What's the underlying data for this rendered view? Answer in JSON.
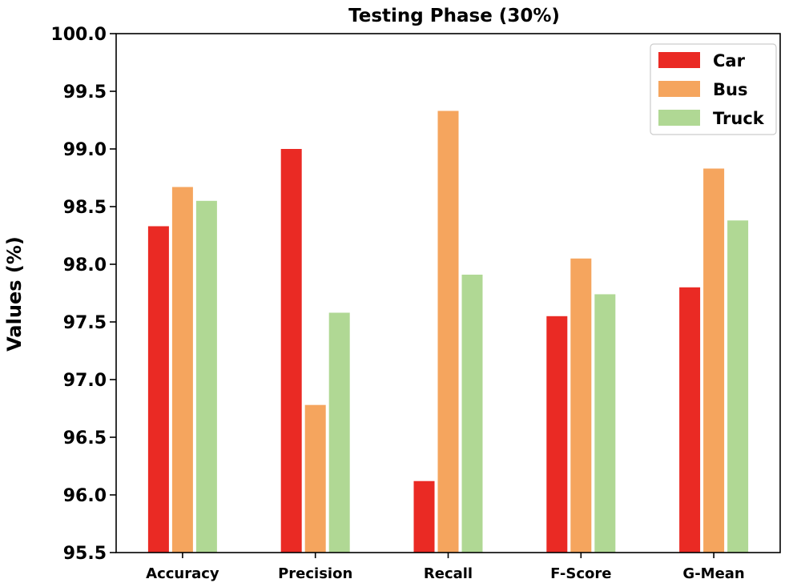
{
  "chart_data": {
    "type": "bar",
    "title": "Testing Phase (30%)",
    "xlabel": "",
    "ylabel": "Values (%)",
    "ylim": [
      95.5,
      100.0
    ],
    "yticks": [
      "95.5",
      "96.0",
      "96.5",
      "97.0",
      "97.5",
      "98.0",
      "98.5",
      "99.0",
      "99.5",
      "100.0"
    ],
    "categories": [
      "Accuracy",
      "Precision",
      "Recall",
      "F-Score",
      "G-Mean"
    ],
    "series": [
      {
        "name": "Car",
        "color": "#ea2a24",
        "values": [
          98.33,
          99.0,
          96.12,
          97.55,
          97.8
        ]
      },
      {
        "name": "Bus",
        "color": "#f5a55e",
        "values": [
          98.67,
          96.78,
          99.33,
          98.05,
          98.83
        ]
      },
      {
        "name": "Truck",
        "color": "#b0d894",
        "values": [
          98.55,
          97.58,
          97.91,
          97.74,
          98.38
        ]
      }
    ],
    "grid": false,
    "legend": "top-right"
  }
}
